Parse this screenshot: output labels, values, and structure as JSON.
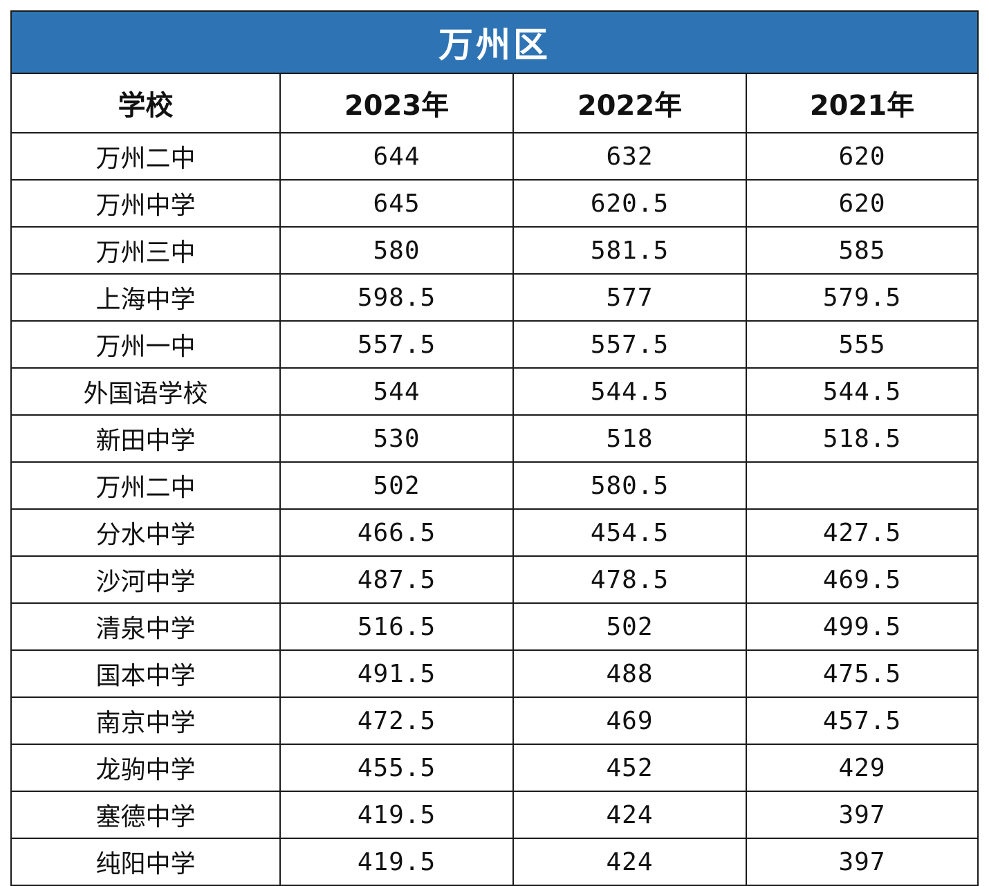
{
  "title": "万州区",
  "headers": [
    "学校",
    "2023年",
    "2022年",
    "2021年"
  ],
  "rows": [
    [
      "万州二中",
      "644",
      "632",
      "620"
    ],
    [
      "万州中学",
      "645",
      "620.5",
      "620"
    ],
    [
      "万州三中",
      "580",
      "581.5",
      "585"
    ],
    [
      "上海中学",
      "598.5",
      "577",
      "579.5"
    ],
    [
      "万州一中",
      "557.5",
      "557.5",
      "555"
    ],
    [
      "外国语学校",
      "544",
      "544.5",
      "544.5"
    ],
    [
      "新田中学",
      "530",
      "518",
      "518.5"
    ],
    [
      "万州二中",
      "502",
      "580.5",
      ""
    ],
    [
      "分水中学",
      "466.5",
      "454.5",
      "427.5"
    ],
    [
      "沙河中学",
      "487.5",
      "478.5",
      "469.5"
    ],
    [
      "清泉中学",
      "516.5",
      "502",
      "499.5"
    ],
    [
      "国本中学",
      "491.5",
      "488",
      "475.5"
    ],
    [
      "南京中学",
      "472.5",
      "469",
      "457.5"
    ],
    [
      "龙驹中学",
      "455.5",
      "452",
      "429"
    ],
    [
      "塞德中学",
      "419.5",
      "424",
      "397"
    ],
    [
      "纯阳中学",
      "419.5",
      "424",
      "397"
    ]
  ],
  "colors": {
    "title_background": "#2e74b5",
    "title_text": "#ffffff",
    "border": "#1a1a1a"
  }
}
